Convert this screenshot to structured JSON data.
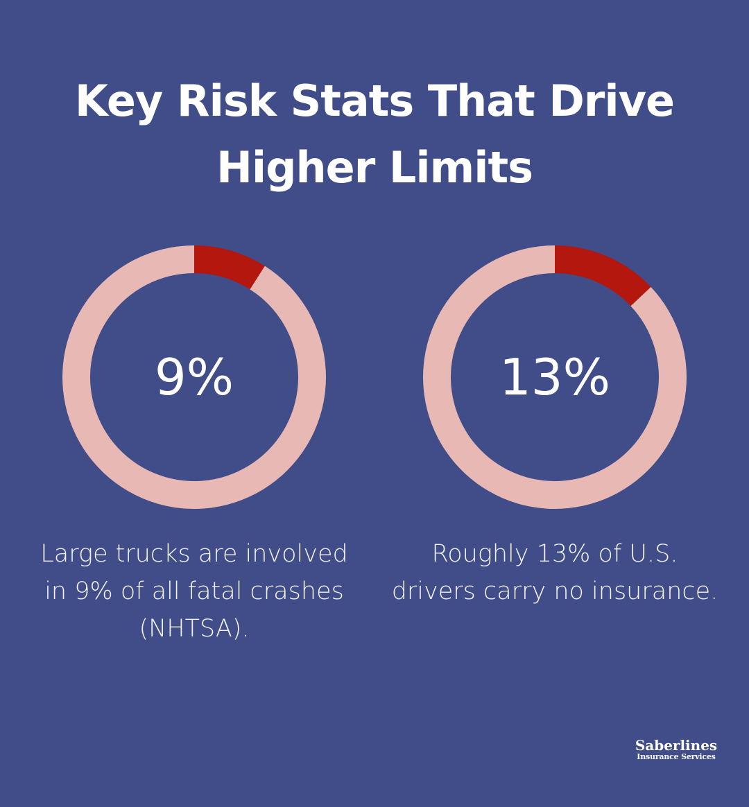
{
  "title": {
    "line1": "Key Risk Stats That Drive",
    "line2": "Higher Limits"
  },
  "chart_data": [
    {
      "type": "pie",
      "variant": "donut",
      "center_label": "9%",
      "values": [
        9,
        91
      ],
      "caption_lines": [
        "Large trucks are involved",
        "in 9% of all fatal crashes",
        "(NHTSA)."
      ]
    },
    {
      "type": "pie",
      "variant": "donut",
      "center_label": "13%",
      "values": [
        13,
        87
      ],
      "caption_lines": [
        "Roughly 13% of U.S.",
        "drivers carry no insurance."
      ]
    }
  ],
  "colors": {
    "background": "#414d88",
    "highlight": "#b3170d",
    "remainder": "#e8b8b4",
    "text": "#ffffff"
  },
  "logo": {
    "name": "Saberlines",
    "subtitle": "Insurance Services"
  }
}
